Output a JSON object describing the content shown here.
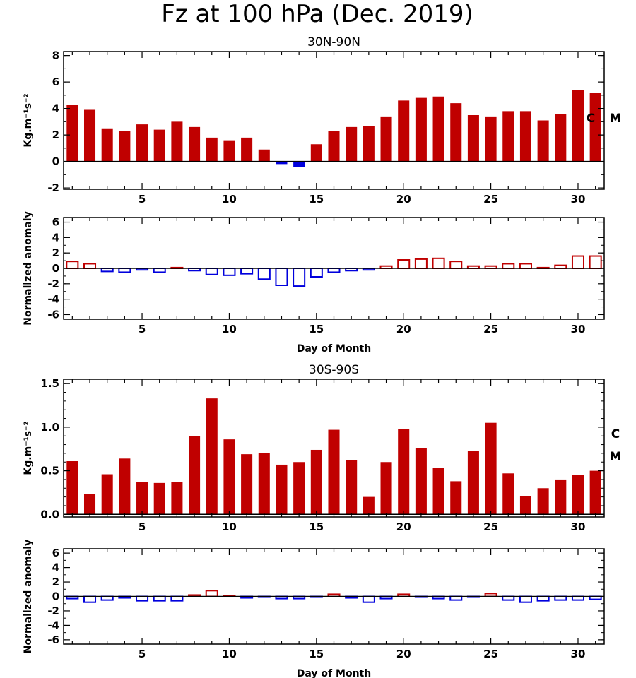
{
  "title": "Fz at 100 hPa (Dec. 2019)",
  "colors": {
    "positive": "#c00000",
    "negative": "#0000dd",
    "axis": "#000000"
  },
  "chart_data": [
    {
      "type": "bar",
      "title": "30N-90N",
      "ylabel": "Kg.m⁻¹s⁻²",
      "xlabel": "",
      "xlim": [
        0.5,
        31.5
      ],
      "ylim": [
        -2.1,
        8.3
      ],
      "yticks": [
        "-2",
        "0",
        "2",
        "4",
        "6",
        "8"
      ],
      "xticks": [
        "5",
        "10",
        "15",
        "20",
        "25",
        "30"
      ],
      "side_labels": [
        "C",
        "M"
      ],
      "filled": true,
      "x": [
        1,
        2,
        3,
        4,
        5,
        6,
        7,
        8,
        9,
        10,
        11,
        12,
        13,
        14,
        15,
        16,
        17,
        18,
        19,
        20,
        21,
        22,
        23,
        24,
        25,
        26,
        27,
        28,
        29,
        30,
        31
      ],
      "values": [
        4.3,
        3.9,
        2.5,
        2.3,
        2.8,
        2.4,
        3.0,
        2.6,
        1.8,
        1.6,
        1.8,
        0.9,
        -0.2,
        -0.4,
        1.3,
        2.3,
        2.6,
        2.7,
        3.4,
        4.6,
        4.8,
        4.9,
        4.4,
        3.5,
        3.4,
        3.8,
        3.8,
        3.1,
        3.6,
        5.4,
        5.2
      ]
    },
    {
      "type": "bar",
      "title": "",
      "ylabel": "Normalized anomaly",
      "xlabel": "Day of Month",
      "xlim": [
        0.5,
        31.5
      ],
      "ylim": [
        -6.6,
        6.6
      ],
      "yticks": [
        "-6",
        "-4",
        "-2",
        "0",
        "2",
        "4",
        "6"
      ],
      "xticks": [
        "5",
        "10",
        "15",
        "20",
        "25",
        "30"
      ],
      "filled": false,
      "x": [
        1,
        2,
        3,
        4,
        5,
        6,
        7,
        8,
        9,
        10,
        11,
        12,
        13,
        14,
        15,
        16,
        17,
        18,
        19,
        20,
        21,
        22,
        23,
        24,
        25,
        26,
        27,
        28,
        29,
        30,
        31
      ],
      "values": [
        0.9,
        0.6,
        -0.4,
        -0.5,
        -0.2,
        -0.5,
        0.1,
        -0.3,
        -0.8,
        -0.9,
        -0.7,
        -1.4,
        -2.2,
        -2.3,
        -1.1,
        -0.5,
        -0.3,
        -0.2,
        0.3,
        1.1,
        1.2,
        1.3,
        0.9,
        0.3,
        0.3,
        0.6,
        0.6,
        0.1,
        0.4,
        1.6,
        1.6
      ]
    },
    {
      "type": "bar",
      "title": "30S-90S",
      "ylabel": "Kg.m⁻¹s⁻²",
      "xlabel": "",
      "xlim": [
        0.5,
        31.5
      ],
      "ylim": [
        -0.03,
        1.55
      ],
      "yticks": [
        "0.0",
        "0.5",
        "1.0",
        "1.5"
      ],
      "ytick_values": [
        0.0,
        0.5,
        1.0,
        1.5
      ],
      "xticks": [
        "5",
        "10",
        "15",
        "20",
        "25",
        "30"
      ],
      "side_labels": [
        "C",
        "M"
      ],
      "filled": true,
      "x": [
        1,
        2,
        3,
        4,
        5,
        6,
        7,
        8,
        9,
        10,
        11,
        12,
        13,
        14,
        15,
        16,
        17,
        18,
        19,
        20,
        21,
        22,
        23,
        24,
        25,
        26,
        27,
        28,
        29,
        30,
        31
      ],
      "values": [
        0.61,
        0.23,
        0.46,
        0.64,
        0.37,
        0.36,
        0.37,
        0.9,
        1.33,
        0.86,
        0.69,
        0.7,
        0.57,
        0.6,
        0.74,
        0.97,
        0.62,
        0.2,
        0.6,
        0.98,
        0.76,
        0.53,
        0.38,
        0.73,
        1.05,
        0.47,
        0.21,
        0.3,
        0.4,
        0.45,
        0.5
      ]
    },
    {
      "type": "bar",
      "title": "",
      "ylabel": "Normalized anomaly",
      "xlabel": "Day of Month",
      "xlim": [
        0.5,
        31.5
      ],
      "ylim": [
        -6.6,
        6.6
      ],
      "yticks": [
        "-6",
        "-4",
        "-2",
        "0",
        "2",
        "4",
        "6"
      ],
      "xticks": [
        "5",
        "10",
        "15",
        "20",
        "25",
        "30"
      ],
      "filled": false,
      "x": [
        1,
        2,
        3,
        4,
        5,
        6,
        7,
        8,
        9,
        10,
        11,
        12,
        13,
        14,
        15,
        16,
        17,
        18,
        19,
        20,
        21,
        22,
        23,
        24,
        25,
        26,
        27,
        28,
        29,
        30,
        31
      ],
      "values": [
        -0.3,
        -0.8,
        -0.5,
        -0.2,
        -0.6,
        -0.6,
        -0.6,
        0.2,
        0.8,
        0.1,
        -0.2,
        -0.1,
        -0.3,
        -0.3,
        -0.1,
        0.3,
        -0.2,
        -0.8,
        -0.3,
        0.3,
        -0.1,
        -0.3,
        -0.5,
        -0.1,
        0.4,
        -0.5,
        -0.8,
        -0.6,
        -0.5,
        -0.5,
        -0.4
      ]
    }
  ]
}
